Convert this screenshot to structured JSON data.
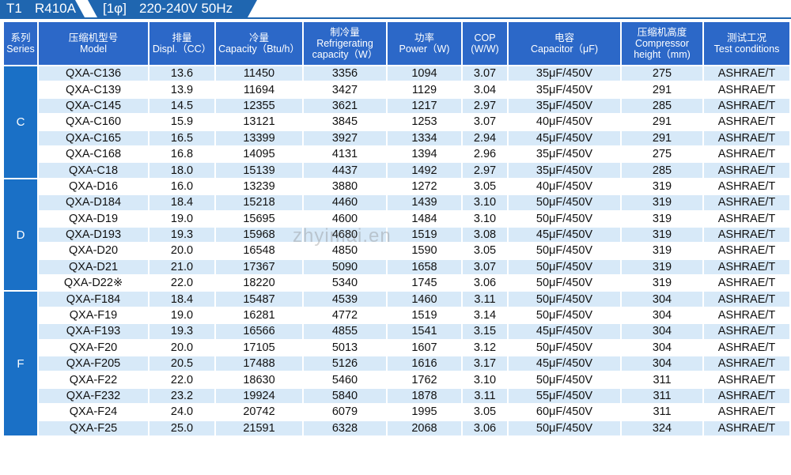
{
  "banner": {
    "t1": "T1",
    "refrigerant": "R410A",
    "phase": "[1φ]",
    "power": "220-240V 50Hz"
  },
  "watermark": "zhyimai.en",
  "headers": [
    {
      "cn": "系列",
      "en": "Series"
    },
    {
      "cn": "压缩机型号",
      "en": "Model"
    },
    {
      "cn": "排量",
      "en": "Displ.（CC）"
    },
    {
      "cn": "冷量",
      "en": "Capacity（Btu/h）"
    },
    {
      "cn": "制冷量",
      "en": "Refrigerating capacity（W）"
    },
    {
      "cn": "功率",
      "en": "Power（W)"
    },
    {
      "cn": "COP",
      "en": "(W/W)"
    },
    {
      "cn": "电容",
      "en": "Capacitor（μF)"
    },
    {
      "cn": "压缩机高度",
      "en": "Compressor height（mm)"
    },
    {
      "cn": "测试工况",
      "en": "Test conditions"
    }
  ],
  "groups": [
    {
      "series": "C",
      "rows": [
        [
          "QXA-C136",
          "13.6",
          "11450",
          "3356",
          "1094",
          "3.07",
          "35μF/450V",
          "275",
          "ASHRAE/T"
        ],
        [
          "QXA-C139",
          "13.9",
          "11694",
          "3427",
          "1129",
          "3.04",
          "35μF/450V",
          "291",
          "ASHRAE/T"
        ],
        [
          "QXA-C145",
          "14.5",
          "12355",
          "3621",
          "1217",
          "2.97",
          "35μF/450V",
          "285",
          "ASHRAE/T"
        ],
        [
          "QXA-C160",
          "15.9",
          "13121",
          "3845",
          "1253",
          "3.07",
          "40μF/450V",
          "291",
          "ASHRAE/T"
        ],
        [
          "QXA-C165",
          "16.5",
          "13399",
          "3927",
          "1334",
          "2.94",
          "45μF/450V",
          "291",
          "ASHRAE/T"
        ],
        [
          "QXA-C168",
          "16.8",
          "14095",
          "4131",
          "1394",
          "2.96",
          "35μF/450V",
          "275",
          "ASHRAE/T"
        ],
        [
          "QXA-C18",
          "18.0",
          "15139",
          "4437",
          "1492",
          "2.97",
          "35μF/450V",
          "285",
          "ASHRAE/T"
        ]
      ]
    },
    {
      "series": "D",
      "rows": [
        [
          "QXA-D16",
          "16.0",
          "13239",
          "3880",
          "1272",
          "3.05",
          "40μF/450V",
          "319",
          "ASHRAE/T"
        ],
        [
          "QXA-D184",
          "18.4",
          "15218",
          "4460",
          "1439",
          "3.10",
          "50μF/450V",
          "319",
          "ASHRAE/T"
        ],
        [
          "QXA-D19",
          "19.0",
          "15695",
          "4600",
          "1484",
          "3.10",
          "50μF/450V",
          "319",
          "ASHRAE/T"
        ],
        [
          "QXA-D193",
          "19.3",
          "15968",
          "4680",
          "1519",
          "3.08",
          "45μF/450V",
          "319",
          "ASHRAE/T"
        ],
        [
          "QXA-D20",
          "20.0",
          "16548",
          "4850",
          "1590",
          "3.05",
          "50μF/450V",
          "319",
          "ASHRAE/T"
        ],
        [
          "QXA-D21",
          "21.0",
          "17367",
          "5090",
          "1658",
          "3.07",
          "50μF/450V",
          "319",
          "ASHRAE/T"
        ],
        [
          "QXA-D22※",
          "22.0",
          "18220",
          "5340",
          "1745",
          "3.06",
          "50μF/450V",
          "319",
          "ASHRAE/T"
        ]
      ]
    },
    {
      "series": "F",
      "rows": [
        [
          "QXA-F184",
          "18.4",
          "15487",
          "4539",
          "1460",
          "3.11",
          "50μF/450V",
          "304",
          "ASHRAE/T"
        ],
        [
          "QXA-F19",
          "19.0",
          "16281",
          "4772",
          "1519",
          "3.14",
          "50μF/450V",
          "304",
          "ASHRAE/T"
        ],
        [
          "QXA-F193",
          "19.3",
          "16566",
          "4855",
          "1541",
          "3.15",
          "45μF/450V",
          "304",
          "ASHRAE/T"
        ],
        [
          "QXA-F20",
          "20.0",
          "17105",
          "5013",
          "1607",
          "3.12",
          "50μF/450V",
          "304",
          "ASHRAE/T"
        ],
        [
          "QXA-F205",
          "20.5",
          "17488",
          "5126",
          "1616",
          "3.17",
          "45μF/450V",
          "304",
          "ASHRAE/T"
        ],
        [
          "QXA-F22",
          "22.0",
          "18630",
          "5460",
          "1762",
          "3.10",
          "50μF/450V",
          "311",
          "ASHRAE/T"
        ],
        [
          "QXA-F232",
          "23.2",
          "19924",
          "5840",
          "1878",
          "3.11",
          "55μF/450V",
          "311",
          "ASHRAE/T"
        ],
        [
          "QXA-F24",
          "24.0",
          "20742",
          "6079",
          "1995",
          "3.05",
          "60μF/450V",
          "311",
          "ASHRAE/T"
        ],
        [
          "QXA-F25",
          "25.0",
          "21591",
          "6328",
          "2068",
          "3.06",
          "50μF/450V",
          "324",
          "ASHRAE/T"
        ]
      ]
    }
  ],
  "colors": {
    "header_blue": "#2c68c8",
    "series_blue": "#1a70c6",
    "row_light": "#d7e9f8",
    "banner_blue": "#1f66b0"
  }
}
